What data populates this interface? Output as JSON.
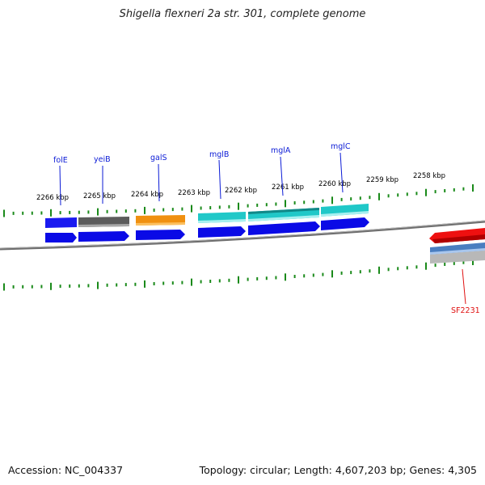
{
  "title": "Shigella flexneri 2a str. 301, complete genome",
  "footer": {
    "accession": "Accession: NC_004337",
    "summary": "Topology: circular; Length: 4,607,203 bp; Genes: 4,305"
  },
  "kbp_labels": [
    "2266 kbp",
    "2265 kbp",
    "2264 kbp",
    "2263 kbp",
    "2262 kbp",
    "2261 kbp",
    "2260 kbp",
    "2259 kbp",
    "2258 kbp"
  ],
  "genes_top": [
    {
      "name": "folE",
      "color": "#0b1bd6"
    },
    {
      "name": "yeiB",
      "color": "#0b1bd6"
    },
    {
      "name": "galS",
      "color": "#0b1bd6"
    },
    {
      "name": "mglB",
      "color": "#0b1bd6"
    },
    {
      "name": "mglA",
      "color": "#0b1bd6"
    },
    {
      "name": "mglC",
      "color": "#0b1bd6"
    }
  ],
  "genes_bottom": [
    {
      "name": "SF2231",
      "color": "#e01010"
    }
  ],
  "colors": {
    "cog_blue": "#1a1af0",
    "cog_gray": "#5c5c5c",
    "cog_orange": "#f09010",
    "cog_cyan": "#20c8c8",
    "gene_blue": "#0a0ae6",
    "gene_red": "#ee1010",
    "steelblue": "#4a7ec0",
    "tick_green": "#1a8a1a",
    "backbone": "#777777"
  }
}
